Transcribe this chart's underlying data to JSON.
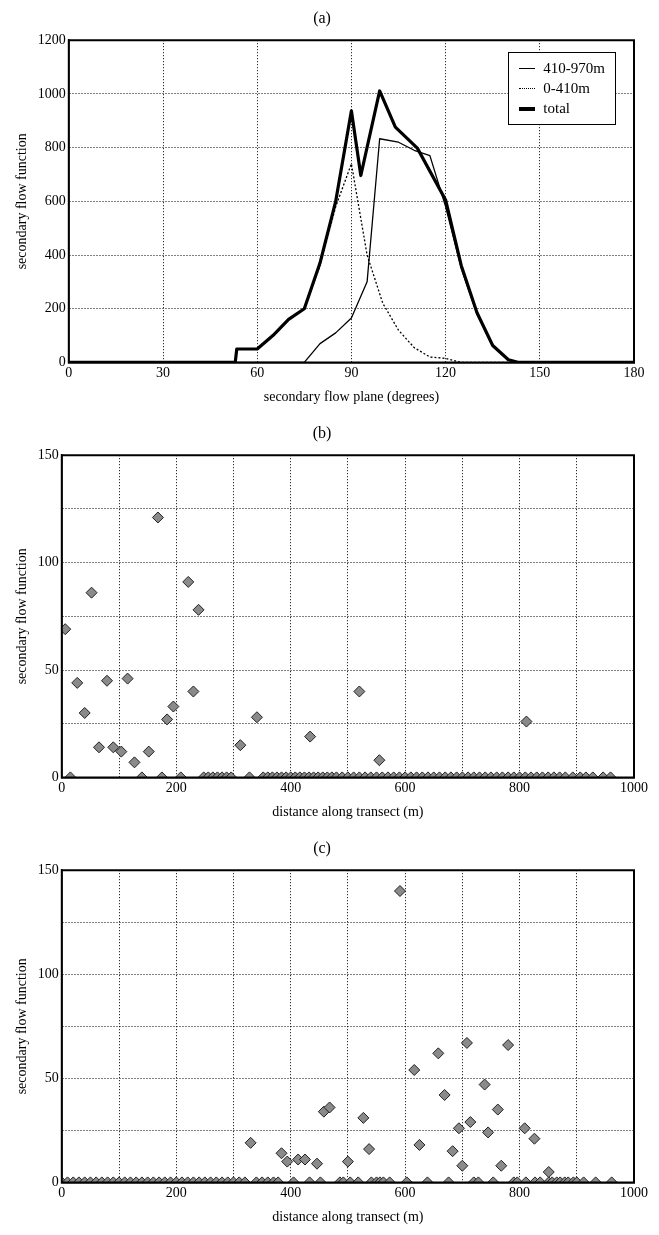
{
  "chart_data": [
    {
      "type": "line",
      "title": "(a)",
      "xlabel": "secondary flow plane (degrees)",
      "ylabel": "secondary flow function",
      "xlim": [
        0,
        180
      ],
      "xticks": [
        0,
        30,
        60,
        90,
        120,
        150,
        180
      ],
      "ylim": [
        0,
        1200
      ],
      "yticks": [
        0,
        200,
        400,
        600,
        800,
        1000,
        1200
      ],
      "grid": true,
      "legend": "top right",
      "marker": "none",
      "series": [
        {
          "name": "410-970m",
          "color": "#000000",
          "line_style": "solid",
          "x": [
            0,
            75,
            80,
            85,
            90,
            95,
            99,
            105,
            110,
            115,
            120,
            125,
            130,
            135,
            140,
            143,
            180
          ],
          "values": [
            0,
            0,
            70,
            110,
            165,
            300,
            833,
            820,
            790,
            770,
            580,
            350,
            180,
            60,
            10,
            0,
            0
          ]
        },
        {
          "name": "0-410m",
          "color": "#000000",
          "line_style": "dotted",
          "x": [
            0,
            53,
            53.5,
            60,
            65,
            70,
            75,
            80,
            85,
            90,
            95,
            100,
            105,
            110,
            115,
            120,
            125,
            180
          ],
          "values": [
            0,
            0,
            50,
            50,
            100,
            160,
            200,
            360,
            580,
            740,
            400,
            220,
            120,
            55,
            20,
            15,
            0,
            0
          ]
        },
        {
          "name": "total",
          "color": "#000000",
          "line_style": "solid",
          "x": [
            0,
            53,
            53.5,
            60,
            65,
            70,
            75,
            80,
            85,
            90,
            93,
            99,
            104,
            111,
            120,
            125,
            130,
            135,
            140,
            143,
            180
          ],
          "values": [
            0,
            0,
            50,
            50,
            100,
            160,
            200,
            370,
            600,
            937,
            696,
            1011,
            876,
            798,
            605,
            360,
            185,
            63,
            10,
            0,
            0
          ]
        }
      ]
    },
    {
      "type": "scatter",
      "title": "(b)",
      "xlabel": "distance along transect (m)",
      "ylabel": "secondary flow function",
      "xlim": [
        0,
        1000
      ],
      "xticks": [
        0,
        {
          "value": 100,
          "label": null
        },
        200,
        {
          "value": 300,
          "label": null
        },
        400,
        {
          "value": 500,
          "label": null
        },
        600,
        {
          "value": 700,
          "label": null
        },
        800,
        {
          "value": 900,
          "label": null
        },
        1000
      ],
      "ylim": [
        0,
        150
      ],
      "yticks": [
        0,
        {
          "value": 25,
          "label": null
        },
        50,
        {
          "value": 75,
          "label": null
        },
        100,
        {
          "value": 125,
          "label": null
        },
        150
      ],
      "grid": true,
      "marker": "diamond",
      "series": [
        {
          "color": "#8a8a8a",
          "x": [
            6,
            27,
            40,
            52,
            65,
            79,
            90,
            104,
            115,
            127,
            152,
            168,
            184,
            195,
            221,
            230,
            239,
            312,
            341,
            434,
            520,
            555,
            812,
            15,
            140,
            175,
            208,
            248,
            256,
            264,
            272,
            280,
            288,
            296,
            328,
            352,
            360,
            368,
            376,
            384,
            392,
            400,
            408,
            416,
            424,
            432,
            440,
            448,
            456,
            464,
            472,
            480,
            490,
            500,
            510,
            520,
            530,
            540,
            550,
            560,
            570,
            580,
            590,
            600,
            610,
            620,
            630,
            640,
            650,
            660,
            670,
            680,
            690,
            700,
            710,
            720,
            730,
            740,
            750,
            760,
            770,
            780,
            790,
            800,
            810,
            820,
            830,
            840,
            850,
            860,
            870,
            880,
            893,
            906,
            916,
            928,
            946,
            959
          ],
          "values": [
            69,
            44,
            30,
            86,
            14,
            45,
            14,
            12,
            46,
            7,
            12,
            121,
            27,
            33,
            91,
            40,
            78,
            15,
            28,
            19,
            40,
            8,
            26,
            0,
            0,
            0,
            0,
            0,
            0,
            0,
            0,
            0,
            0,
            0,
            0,
            0,
            0,
            0,
            0,
            0,
            0,
            0,
            0,
            0,
            0,
            0,
            0,
            0,
            0,
            0,
            0,
            0,
            0,
            0,
            0,
            0,
            0,
            0,
            0,
            0,
            0,
            0,
            0,
            0,
            0,
            0,
            0,
            0,
            0,
            0,
            0,
            0,
            0,
            0,
            0,
            0,
            0,
            0,
            0,
            0,
            0,
            0,
            0,
            0,
            0,
            0,
            0,
            0,
            0,
            0,
            0,
            0,
            0,
            0,
            0,
            0,
            0,
            0
          ]
        }
      ]
    },
    {
      "type": "scatter",
      "title": "(c)",
      "xlabel": "distance along transect (m)",
      "ylabel": "secondary flow function",
      "xlim": [
        0,
        1000
      ],
      "xticks": [
        0,
        {
          "value": 100,
          "label": null
        },
        200,
        {
          "value": 300,
          "label": null
        },
        400,
        {
          "value": 500,
          "label": null
        },
        600,
        {
          "value": 700,
          "label": null
        },
        800,
        {
          "value": 900,
          "label": null
        },
        1000
      ],
      "ylim": [
        0,
        150
      ],
      "yticks": [
        0,
        {
          "value": 25,
          "label": null
        },
        50,
        {
          "value": 75,
          "label": null
        },
        100,
        {
          "value": 125,
          "label": null
        },
        150
      ],
      "grid": true,
      "marker": "diamond",
      "series": [
        {
          "color": "#8a8a8a",
          "x": [
            330,
            384,
            394,
            413,
            425,
            446,
            458,
            468,
            500,
            527,
            537,
            591,
            616,
            625,
            658,
            669,
            683,
            694,
            700,
            708,
            714,
            739,
            745,
            762,
            768,
            780,
            809,
            826,
            851,
            0,
            10,
            20,
            30,
            40,
            50,
            60,
            70,
            80,
            90,
            100,
            110,
            120,
            130,
            140,
            150,
            160,
            170,
            180,
            190,
            200,
            210,
            220,
            230,
            240,
            250,
            260,
            270,
            280,
            290,
            300,
            310,
            320,
            340,
            350,
            360,
            370,
            378,
            405,
            433,
            452,
            486,
            492,
            504,
            518,
            541,
            550,
            556,
            562,
            573,
            603,
            639,
            676,
            720,
            728,
            754,
            790,
            796,
            811,
            827,
            836,
            851,
            857,
            865,
            871,
            879,
            885,
            894,
            900,
            912,
            933,
            961
          ],
          "values": [
            19,
            14,
            10,
            11,
            11,
            9,
            34,
            36,
            10,
            31,
            16,
            140,
            54,
            18,
            62,
            42,
            15,
            26,
            8,
            67,
            29,
            47,
            24,
            35,
            8,
            66,
            26,
            21,
            5,
            0,
            0,
            0,
            0,
            0,
            0,
            0,
            0,
            0,
            0,
            0,
            0,
            0,
            0,
            0,
            0,
            0,
            0,
            0,
            0,
            0,
            0,
            0,
            0,
            0,
            0,
            0,
            0,
            0,
            0,
            0,
            0,
            0,
            0,
            0,
            0,
            0,
            0,
            0,
            0,
            0,
            0,
            0,
            0,
            0,
            0,
            0,
            0,
            0,
            0,
            0,
            0,
            0,
            0,
            0,
            0,
            0,
            0,
            0,
            0,
            0,
            0,
            0,
            0,
            0,
            0,
            0,
            0,
            0,
            0,
            0,
            0
          ]
        }
      ]
    }
  ]
}
